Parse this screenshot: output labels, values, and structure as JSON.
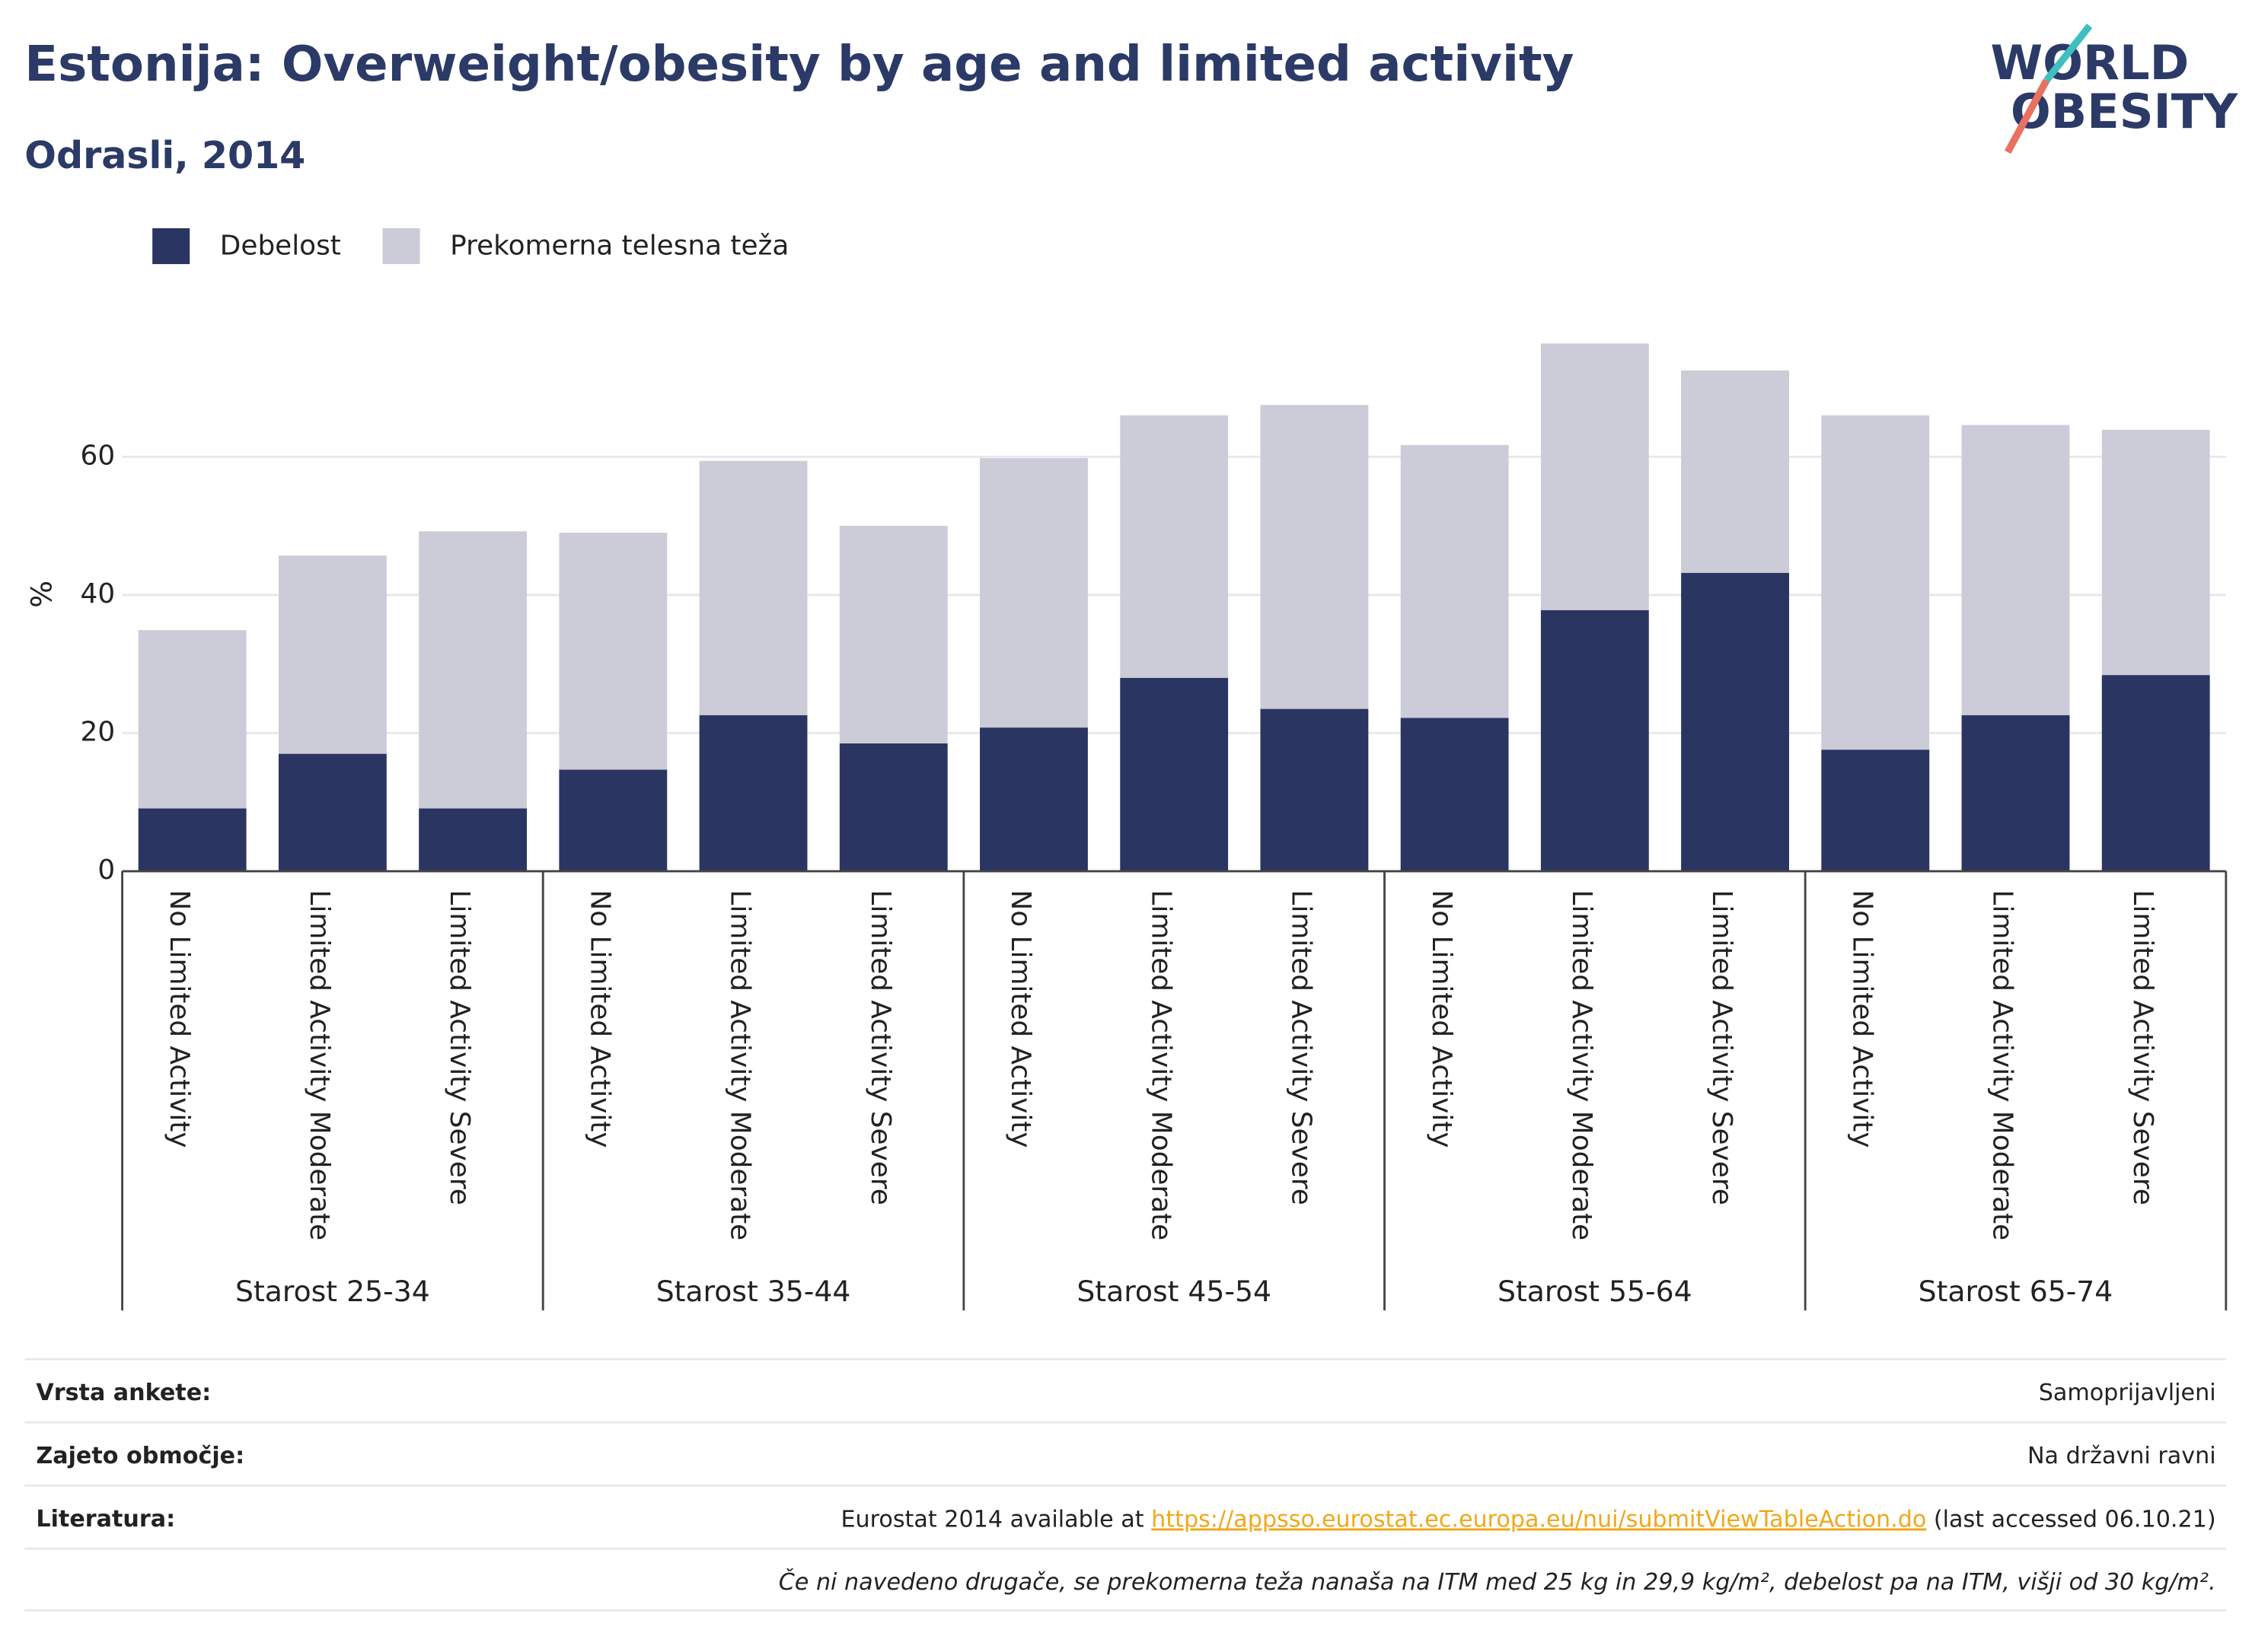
{
  "chart_data": {
    "type": "stacked_bar",
    "title": "Estonija: Overweight/obesity by age and limited activity",
    "subtitle": "Odrasli, 2014",
    "ylabel": "%",
    "categories": [
      "No Limited Activity",
      "Limited Activity Moderate",
      "Limited Activity Severe",
      "No Limited Activity",
      "Limited Activity Moderate",
      "Limited Activity Severe",
      "No Limited Activity",
      "Limited Activity Moderate",
      "Limited Activity Severe",
      "No Limited Activity",
      "Limited Activity Moderate",
      "Limited Activity Severe",
      "No Limited Activity",
      "Limited Activity Moderate",
      "Limited Activity Severe"
    ],
    "groups": [
      "Starost 25-34",
      "Starost 35-44",
      "Starost 45-54",
      "Starost 55-64",
      "Starost 65-74"
    ],
    "series": [
      {
        "name": "Debelost",
        "color": "#2b3562",
        "values": [
          9.1,
          17.0,
          9.1,
          14.7,
          22.6,
          18.5,
          20.8,
          28.0,
          23.5,
          22.2,
          37.8,
          43.2,
          17.6,
          22.6,
          28.4
        ]
      },
      {
        "name": "Prekomerna telesna teža",
        "color": "#cbccd7",
        "values": [
          25.8,
          28.7,
          40.1,
          34.3,
          36.8,
          31.5,
          39.0,
          38.0,
          44.0,
          39.5,
          38.6,
          29.3,
          48.4,
          42.0,
          35.5
        ]
      }
    ],
    "ylim": [
      0,
      80
    ],
    "yticks": [
      0,
      20,
      40,
      60
    ],
    "grid": true
  },
  "logo": [
    "WORLD",
    "OBESITY"
  ],
  "footer": {
    "rows": [
      {
        "label": "Vrsta ankete:",
        "value": "Samoprijavljeni"
      },
      {
        "label": "Zajeto območje:",
        "value": "Na državni ravni"
      }
    ],
    "literature": {
      "label": "Literatura:",
      "before": "Eurostat 2014 available at ",
      "link": "https://appsso.eurostat.ec.europa.eu/nui/submitViewTableAction.do",
      "after": " (last accessed 06.10.21)"
    },
    "note": "Če ni navedeno drugače, se prekomerna teža nanaša na ITM med 25 kg in 29,9 kg/m², debelost pa na ITM, višji od 30 kg/m²."
  }
}
